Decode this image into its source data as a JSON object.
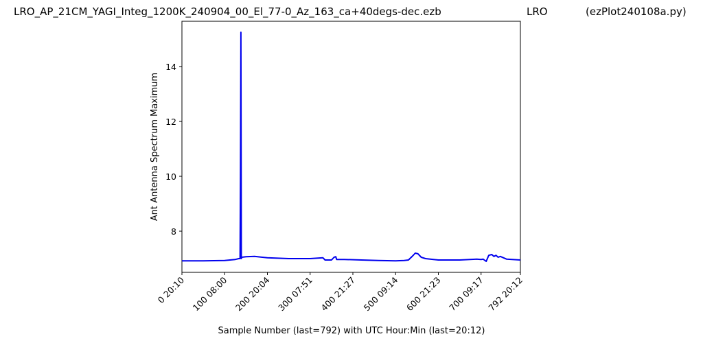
{
  "chart_data": {
    "type": "line",
    "title_segments": [
      "LRO_AP_21CM_YAGI_Integ_1200K_240904_00_El_77-0_Az_163_ca+40degs-dec.ezb",
      "LRO",
      "(ezPlot240108a.py)"
    ],
    "x_label": "Sample Number (last=792) with UTC Hour:Min (last=20:12)",
    "y_label": "Ant Antenna Spectrum Maximum",
    "x": [
      0,
      50,
      100,
      125,
      133,
      136,
      137,
      138,
      139,
      140,
      150,
      170,
      200,
      250,
      300,
      330,
      335,
      350,
      356,
      360,
      362,
      380,
      420,
      460,
      500,
      520,
      530,
      540,
      546,
      552,
      560,
      570,
      600,
      650,
      690,
      700,
      705,
      712,
      718,
      725,
      730,
      735,
      740,
      745,
      760,
      792
    ],
    "series": [
      {
        "color": "#0000ee",
        "values": [
          6.92,
          6.92,
          6.93,
          6.97,
          7.0,
          7.0,
          10.0,
          15.25,
          7.0,
          7.05,
          7.07,
          7.08,
          7.03,
          7.0,
          7.0,
          7.03,
          6.95,
          6.95,
          7.05,
          7.07,
          6.97,
          6.97,
          6.95,
          6.93,
          6.92,
          6.93,
          6.95,
          7.1,
          7.2,
          7.18,
          7.05,
          7.0,
          6.95,
          6.95,
          6.98,
          6.97,
          6.98,
          6.9,
          7.12,
          7.15,
          7.08,
          7.12,
          7.05,
          7.08,
          6.98,
          6.95
        ]
      }
    ],
    "xlim": [
      0,
      792
    ],
    "ylim": [
      6.5,
      15.65
    ],
    "xticks": [
      {
        "value": 0,
        "label": "0  20:10"
      },
      {
        "value": 100,
        "label": "100  08:00"
      },
      {
        "value": 200,
        "label": "200  20:04"
      },
      {
        "value": 300,
        "label": "300  07:51"
      },
      {
        "value": 400,
        "label": "400  21:27"
      },
      {
        "value": 500,
        "label": "500  09:14"
      },
      {
        "value": 600,
        "label": "600  21:23"
      },
      {
        "value": 700,
        "label": "700  09:17"
      },
      {
        "value": 792,
        "label": "792  20:12"
      }
    ],
    "yticks": [
      8,
      10,
      12,
      14
    ]
  }
}
